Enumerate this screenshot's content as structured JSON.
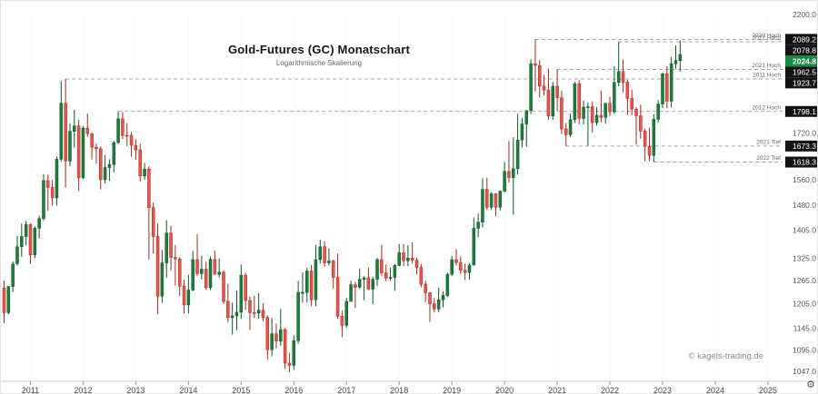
{
  "header": {
    "title": "Gold-Futures (GC) Monatschart",
    "subtitle": "Logarithmische Skalierung"
  },
  "watermark": "© kagels-trading.de",
  "icons": {
    "gear": "⚙"
  },
  "colors": {
    "up": "#1f7d3c",
    "up_border": "#0f5527",
    "down": "#e8554a",
    "down_border": "#a02b22",
    "badge_bg": "#141414",
    "badge_text": "#ffffff",
    "current_badge_bg": "#178a43",
    "axis_text": "#555555",
    "level_line": "#8a8a8a",
    "grid": "#ececec"
  },
  "chart_data": {
    "type": "candlestick",
    "title": "Gold-Futures (GC) Monatschart",
    "subtitle": "Logarithmische Skalierung",
    "scale": "log",
    "x_unit": "month",
    "ylim": [
      1047,
      2200
    ],
    "y_ticks": [
      2200.0,
      1720.0,
      1560.0,
      1480.0,
      1405.0,
      1325.0,
      1265.0,
      1205.0,
      1145.0,
      1095.0,
      1047.0
    ],
    "x_years": [
      2011,
      2012,
      2013,
      2014,
      2015,
      2016,
      2017,
      2018,
      2019,
      2020,
      2021,
      2022,
      2023,
      2024,
      2025
    ],
    "levels": [
      {
        "label": "2020 Hoch",
        "value": 2089.2,
        "start": "2020-08"
      },
      {
        "label": "2022 Hoch",
        "value": 2078.8,
        "start": "2022-03"
      },
      {
        "label": "2021 Hoch",
        "value": 1962.5,
        "start": "2021-01"
      },
      {
        "label": "2011 Hoch",
        "value": 1923.7,
        "start": "2011-09"
      },
      {
        "label": "2012 Hoch",
        "value": 1798.1,
        "start": "2012-09"
      },
      {
        "label": "2021 Tief",
        "value": 1673.3,
        "start": "2021-03"
      },
      {
        "label": "2022 Tief",
        "value": 1618.3,
        "start": "2022-11"
      }
    ],
    "current_price": 2024.8,
    "candles": [
      [
        "2010-07",
        1245,
        1265,
        1157,
        1183
      ],
      [
        "2010-08",
        1183,
        1250,
        1179,
        1249
      ],
      [
        "2010-09",
        1249,
        1316,
        1235,
        1309
      ],
      [
        "2010-10",
        1310,
        1388,
        1305,
        1357
      ],
      [
        "2010-11",
        1357,
        1424,
        1329,
        1386
      ],
      [
        "2010-12",
        1386,
        1432,
        1361,
        1421
      ],
      [
        "2011-01",
        1421,
        1424,
        1309,
        1334
      ],
      [
        "2011-02",
        1334,
        1416,
        1325,
        1410
      ],
      [
        "2011-03",
        1410,
        1448,
        1380,
        1439
      ],
      [
        "2011-04",
        1439,
        1577,
        1432,
        1557
      ],
      [
        "2011-05",
        1557,
        1577,
        1462,
        1535
      ],
      [
        "2011-06",
        1535,
        1559,
        1478,
        1502
      ],
      [
        "2011-07",
        1502,
        1637,
        1478,
        1628
      ],
      [
        "2011-08",
        1628,
        1917,
        1620,
        1829
      ],
      [
        "2011-09",
        1829,
        1923.7,
        1535,
        1622
      ],
      [
        "2011-10",
        1622,
        1754,
        1604,
        1725
      ],
      [
        "2011-11",
        1725,
        1804,
        1667,
        1745
      ],
      [
        "2011-12",
        1745,
        1767,
        1523,
        1566
      ],
      [
        "2012-01",
        1566,
        1744,
        1562,
        1737
      ],
      [
        "2012-02",
        1737,
        1790,
        1706,
        1717
      ],
      [
        "2012-03",
        1717,
        1720,
        1627,
        1669
      ],
      [
        "2012-04",
        1669,
        1681,
        1613,
        1664
      ],
      [
        "2012-05",
        1664,
        1672,
        1529,
        1560
      ],
      [
        "2012-06",
        1560,
        1642,
        1547,
        1600
      ],
      [
        "2012-07",
        1600,
        1628,
        1556,
        1610
      ],
      [
        "2012-08",
        1610,
        1692,
        1584,
        1685
      ],
      [
        "2012-09",
        1685,
        1798.1,
        1681,
        1771
      ],
      [
        "2012-10",
        1771,
        1796,
        1698,
        1711
      ],
      [
        "2012-11",
        1711,
        1755,
        1672,
        1710
      ],
      [
        "2012-12",
        1710,
        1723,
        1636,
        1676
      ],
      [
        "2013-01",
        1676,
        1697,
        1626,
        1660
      ],
      [
        "2013-02",
        1660,
        1682,
        1554,
        1572
      ],
      [
        "2013-03",
        1572,
        1616,
        1560,
        1595
      ],
      [
        "2013-04",
        1595,
        1604,
        1321,
        1472
      ],
      [
        "2013-05",
        1472,
        1488,
        1338,
        1386
      ],
      [
        "2013-06",
        1386,
        1424,
        1179,
        1224
      ],
      [
        "2013-07",
        1224,
        1348,
        1208,
        1312
      ],
      [
        "2013-08",
        1312,
        1434,
        1272,
        1396
      ],
      [
        "2013-09",
        1396,
        1417,
        1291,
        1327
      ],
      [
        "2013-10",
        1327,
        1362,
        1251,
        1323
      ],
      [
        "2013-11",
        1323,
        1327,
        1225,
        1250
      ],
      [
        "2013-12",
        1250,
        1267,
        1181,
        1202
      ],
      [
        "2014-01",
        1202,
        1280,
        1181,
        1240
      ],
      [
        "2014-02",
        1240,
        1345,
        1237,
        1321
      ],
      [
        "2014-03",
        1321,
        1392,
        1277,
        1283
      ],
      [
        "2014-04",
        1283,
        1331,
        1268,
        1295
      ],
      [
        "2014-05",
        1295,
        1315,
        1241,
        1246
      ],
      [
        "2014-06",
        1246,
        1330,
        1240,
        1322
      ],
      [
        "2014-07",
        1322,
        1346,
        1281,
        1281
      ],
      [
        "2014-08",
        1281,
        1324,
        1273,
        1287
      ],
      [
        "2014-09",
        1287,
        1291,
        1204,
        1211
      ],
      [
        "2014-10",
        1211,
        1256,
        1160,
        1171
      ],
      [
        "2014-11",
        1171,
        1208,
        1130,
        1175
      ],
      [
        "2014-12",
        1175,
        1239,
        1141,
        1184
      ],
      [
        "2015-01",
        1184,
        1308,
        1168,
        1279
      ],
      [
        "2015-02",
        1279,
        1285,
        1190,
        1213
      ],
      [
        "2015-03",
        1213,
        1223,
        1141,
        1183
      ],
      [
        "2015-04",
        1183,
        1225,
        1170,
        1182
      ],
      [
        "2015-05",
        1182,
        1232,
        1168,
        1189
      ],
      [
        "2015-06",
        1189,
        1206,
        1162,
        1171
      ],
      [
        "2015-07",
        1171,
        1176,
        1072,
        1095
      ],
      [
        "2015-08",
        1095,
        1170,
        1080,
        1132
      ],
      [
        "2015-09",
        1132,
        1156,
        1098,
        1115
      ],
      [
        "2015-10",
        1115,
        1192,
        1104,
        1142
      ],
      [
        "2015-11",
        1142,
        1146,
        1052,
        1065
      ],
      [
        "2015-12",
        1065,
        1088,
        1045,
        1060
      ],
      [
        "2016-01",
        1060,
        1128,
        1050,
        1116
      ],
      [
        "2016-02",
        1116,
        1264,
        1109,
        1234
      ],
      [
        "2016-03",
        1234,
        1287,
        1208,
        1234
      ],
      [
        "2016-04",
        1234,
        1299,
        1209,
        1290
      ],
      [
        "2016-05",
        1290,
        1306,
        1199,
        1215
      ],
      [
        "2016-06",
        1215,
        1362,
        1199,
        1321
      ],
      [
        "2016-07",
        1321,
        1377,
        1310,
        1357
      ],
      [
        "2016-08",
        1357,
        1373,
        1302,
        1312
      ],
      [
        "2016-09",
        1312,
        1352,
        1305,
        1317
      ],
      [
        "2016-10",
        1317,
        1321,
        1243,
        1273
      ],
      [
        "2016-11",
        1273,
        1338,
        1168,
        1174
      ],
      [
        "2016-12",
        1174,
        1188,
        1124,
        1152
      ],
      [
        "2017-01",
        1152,
        1220,
        1146,
        1211
      ],
      [
        "2017-02",
        1211,
        1264,
        1210,
        1254
      ],
      [
        "2017-03",
        1254,
        1261,
        1194,
        1247
      ],
      [
        "2017-04",
        1247,
        1297,
        1244,
        1268
      ],
      [
        "2017-05",
        1268,
        1276,
        1214,
        1272
      ],
      [
        "2017-06",
        1272,
        1299,
        1240,
        1242
      ],
      [
        "2017-07",
        1242,
        1275,
        1204,
        1268
      ],
      [
        "2017-08",
        1268,
        1326,
        1251,
        1321
      ],
      [
        "2017-09",
        1321,
        1362,
        1277,
        1285
      ],
      [
        "2017-10",
        1285,
        1308,
        1263,
        1271
      ],
      [
        "2017-11",
        1271,
        1299,
        1265,
        1273
      ],
      [
        "2017-12",
        1273,
        1309,
        1238,
        1305
      ],
      [
        "2018-01",
        1305,
        1365,
        1303,
        1340
      ],
      [
        "2018-02",
        1340,
        1364,
        1303,
        1318
      ],
      [
        "2018-03",
        1318,
        1361,
        1303,
        1325
      ],
      [
        "2018-04",
        1325,
        1369,
        1310,
        1319
      ],
      [
        "2018-05",
        1319,
        1326,
        1281,
        1300
      ],
      [
        "2018-06",
        1300,
        1309,
        1247,
        1255
      ],
      [
        "2018-07",
        1255,
        1264,
        1210,
        1233
      ],
      [
        "2018-08",
        1233,
        1235,
        1160,
        1205
      ],
      [
        "2018-09",
        1205,
        1220,
        1184,
        1192
      ],
      [
        "2018-10",
        1192,
        1246,
        1184,
        1215
      ],
      [
        "2018-11",
        1215,
        1237,
        1196,
        1226
      ],
      [
        "2018-12",
        1226,
        1285,
        1222,
        1281
      ],
      [
        "2019-01",
        1281,
        1331,
        1277,
        1321
      ],
      [
        "2019-02",
        1321,
        1350,
        1305,
        1313
      ],
      [
        "2019-03",
        1313,
        1330,
        1281,
        1292
      ],
      [
        "2019-04",
        1292,
        1310,
        1266,
        1286
      ],
      [
        "2019-05",
        1286,
        1311,
        1267,
        1306
      ],
      [
        "2019-06",
        1306,
        1442,
        1305,
        1410
      ],
      [
        "2019-07",
        1410,
        1454,
        1384,
        1428
      ],
      [
        "2019-08",
        1428,
        1565,
        1413,
        1529
      ],
      [
        "2019-09",
        1529,
        1566,
        1465,
        1473
      ],
      [
        "2019-10",
        1473,
        1520,
        1465,
        1515
      ],
      [
        "2019-11",
        1515,
        1517,
        1446,
        1473
      ],
      [
        "2019-12",
        1473,
        1525,
        1463,
        1523
      ],
      [
        "2020-01",
        1523,
        1619,
        1520,
        1587
      ],
      [
        "2020-02",
        1587,
        1691,
        1551,
        1567
      ],
      [
        "2020-03",
        1567,
        1704,
        1450,
        1596
      ],
      [
        "2020-04",
        1596,
        1789,
        1576,
        1694
      ],
      [
        "2020-05",
        1694,
        1775,
        1668,
        1752
      ],
      [
        "2020-06",
        1752,
        1804,
        1671,
        1801
      ],
      [
        "2020-07",
        1801,
        2005,
        1789,
        1986
      ],
      [
        "2020-08",
        1986,
        2089.2,
        1874,
        1979
      ],
      [
        "2020-09",
        1979,
        2001,
        1851,
        1896
      ],
      [
        "2020-10",
        1896,
        1939,
        1859,
        1880
      ],
      [
        "2020-11",
        1880,
        1966,
        1767,
        1781
      ],
      [
        "2020-12",
        1781,
        1912,
        1767,
        1895
      ],
      [
        "2021-01",
        1895,
        1962.5,
        1800,
        1850
      ],
      [
        "2021-02",
        1850,
        1878,
        1715,
        1734
      ],
      [
        "2021-03",
        1734,
        1756,
        1673.3,
        1713
      ],
      [
        "2021-04",
        1713,
        1790,
        1705,
        1768
      ],
      [
        "2021-05",
        1768,
        1913,
        1756,
        1905
      ],
      [
        "2021-06",
        1905,
        1919,
        1750,
        1772
      ],
      [
        "2021-07",
        1772,
        1839,
        1750,
        1814
      ],
      [
        "2021-08",
        1814,
        1831,
        1675,
        1816
      ],
      [
        "2021-09",
        1816,
        1836,
        1721,
        1757
      ],
      [
        "2021-10",
        1757,
        1815,
        1746,
        1784
      ],
      [
        "2021-11",
        1784,
        1879,
        1758,
        1776
      ],
      [
        "2021-12",
        1776,
        1830,
        1753,
        1829
      ],
      [
        "2022-01",
        1829,
        1854,
        1781,
        1797
      ],
      [
        "2022-02",
        1797,
        1976,
        1788,
        1910
      ],
      [
        "2022-03",
        1910,
        2078.8,
        1895,
        1954
      ],
      [
        "2022-04",
        1954,
        2003,
        1871,
        1911
      ],
      [
        "2022-05",
        1911,
        1920,
        1785,
        1848
      ],
      [
        "2022-06",
        1848,
        1882,
        1784,
        1807
      ],
      [
        "2022-07",
        1807,
        1814,
        1678,
        1782
      ],
      [
        "2022-08",
        1782,
        1824,
        1699,
        1726
      ],
      [
        "2022-09",
        1726,
        1735,
        1622,
        1672
      ],
      [
        "2022-10",
        1672,
        1738,
        1621,
        1641
      ],
      [
        "2022-11",
        1641,
        1787,
        1618.3,
        1769
      ],
      [
        "2022-12",
        1769,
        1841,
        1758,
        1826
      ],
      [
        "2023-01",
        1826,
        1949,
        1811,
        1945
      ],
      [
        "2023-02",
        1945,
        1975,
        1810,
        1837
      ],
      [
        "2023-03",
        1837,
        2014,
        1813,
        1986
      ],
      [
        "2023-04",
        1986,
        2063,
        1965,
        1999
      ],
      [
        "2023-05",
        1999,
        2085,
        1954,
        2024.8
      ]
    ]
  }
}
